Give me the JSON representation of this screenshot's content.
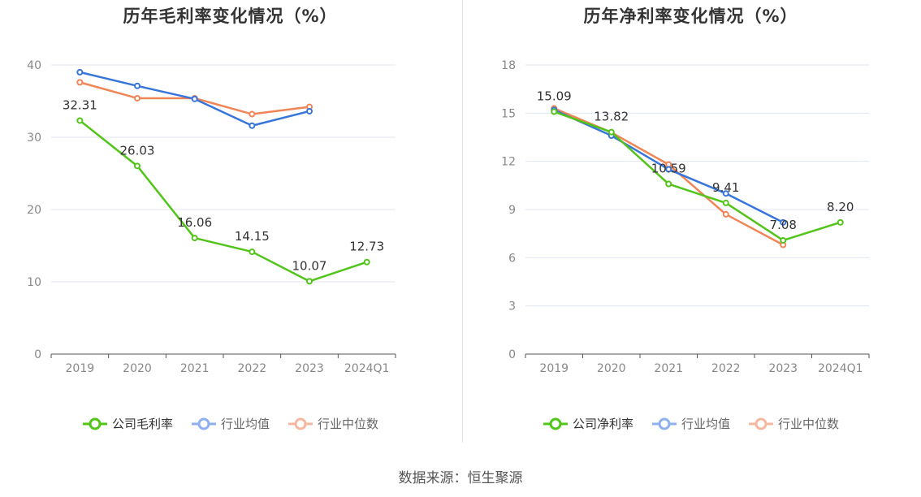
{
  "colors": {
    "company": "#52c41a",
    "avg": "#3875db",
    "median": "#f08557",
    "legend_avg": "#8fb0ee",
    "legend_median": "#f6b7a0",
    "grid": "#e0e6f1",
    "axis": "#555555",
    "tick": "#888888",
    "label": "#333333"
  },
  "chart_data": [
    {
      "type": "line",
      "title": "历年毛利率变化情况（%）",
      "categories": [
        "2019",
        "2020",
        "2021",
        "2022",
        "2023",
        "2024Q1"
      ],
      "ylim": [
        0,
        40
      ],
      "yticks": [
        "0",
        "10",
        "20",
        "30",
        "40"
      ],
      "ytick_values": [
        0,
        10,
        20,
        30,
        40
      ],
      "grid": true,
      "legend_position": "bottom",
      "series": [
        {
          "name": "公司毛利率",
          "key": "company",
          "values": [
            32.31,
            26.03,
            16.06,
            14.15,
            10.07,
            12.73
          ],
          "labels": [
            "32.31",
            "26.03",
            "16.06",
            "14.15",
            "10.07",
            "12.73"
          ]
        },
        {
          "name": "行业均值",
          "key": "avg",
          "values": [
            39.0,
            37.1,
            35.3,
            31.6,
            33.6,
            null
          ]
        },
        {
          "name": "行业中位数",
          "key": "median",
          "values": [
            37.6,
            35.4,
            35.4,
            33.2,
            34.2,
            null
          ]
        }
      ]
    },
    {
      "type": "line",
      "title": "历年净利率变化情况（%）",
      "categories": [
        "2019",
        "2020",
        "2021",
        "2022",
        "2023",
        "2024Q1"
      ],
      "ylim": [
        0,
        18
      ],
      "yticks": [
        "0",
        "3",
        "6",
        "9",
        "12",
        "15",
        "18"
      ],
      "ytick_values": [
        0,
        3,
        6,
        9,
        12,
        15,
        18
      ],
      "grid": true,
      "legend_position": "bottom",
      "series": [
        {
          "name": "公司净利率",
          "key": "company",
          "values": [
            15.09,
            13.82,
            10.59,
            9.41,
            7.08,
            8.2
          ],
          "labels": [
            "15.09",
            "13.82",
            "10.59",
            "9.41",
            "7.08",
            "8.20"
          ]
        },
        {
          "name": "行业均值",
          "key": "avg",
          "values": [
            15.2,
            13.6,
            11.5,
            10.0,
            8.2,
            null
          ]
        },
        {
          "name": "行业中位数",
          "key": "median",
          "values": [
            15.3,
            13.8,
            11.8,
            8.7,
            6.8,
            null
          ]
        }
      ]
    }
  ],
  "source": "数据来源：恒生聚源"
}
